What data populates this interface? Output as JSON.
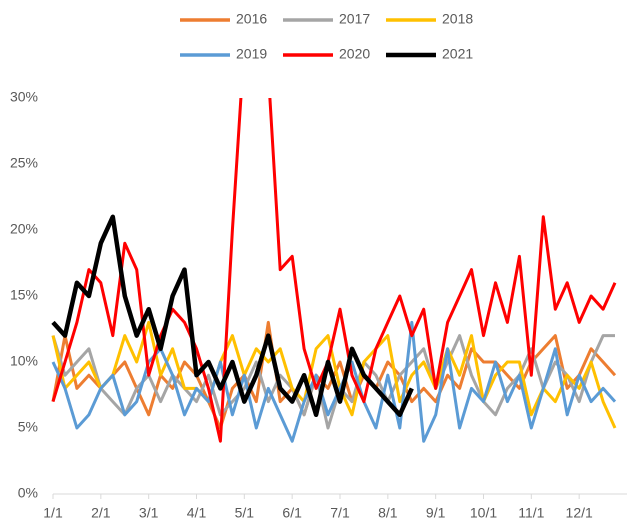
{
  "chart_data": {
    "type": "line",
    "categories": [
      "1/1",
      null,
      null,
      null,
      "2/1",
      null,
      null,
      null,
      "3/1",
      null,
      null,
      null,
      "4/1",
      null,
      null,
      null,
      "5/1",
      null,
      null,
      null,
      "6/1",
      null,
      null,
      null,
      "7/1",
      null,
      null,
      null,
      "8/1",
      null,
      null,
      null,
      "9/1",
      null,
      null,
      null,
      "10/1",
      null,
      null,
      null,
      "11/1",
      null,
      null,
      null,
      "12/1",
      null,
      null,
      null
    ],
    "series": [
      {
        "name": "2016",
        "color": "#ed7d31",
        "values": [
          7,
          12,
          8,
          9,
          8,
          9,
          10,
          8,
          6,
          9,
          8,
          10,
          9,
          7,
          5,
          8,
          9,
          7,
          13,
          7,
          8,
          6,
          9,
          8,
          10,
          7,
          9,
          8,
          10,
          9,
          7,
          8,
          7,
          9,
          8,
          11,
          10,
          10,
          9,
          8,
          10,
          11,
          12,
          8,
          9,
          11,
          10,
          9
        ]
      },
      {
        "name": "2017",
        "color": "#a5a5a5",
        "values": [
          12,
          9,
          10,
          11,
          8,
          7,
          6,
          8,
          9,
          7,
          9,
          8,
          7,
          9,
          6,
          7,
          8,
          10,
          7,
          9,
          8,
          6,
          9,
          5,
          8,
          7,
          10,
          9,
          7,
          9,
          10,
          11,
          8,
          10,
          12,
          9,
          7,
          6,
          8,
          9,
          11,
          8,
          10,
          9,
          7,
          10,
          12,
          12
        ]
      },
      {
        "name": "2018",
        "color": "#ffc000",
        "values": [
          12,
          8,
          9,
          10,
          8,
          9,
          12,
          10,
          13,
          9,
          11,
          8,
          8,
          7,
          10,
          12,
          9,
          11,
          10,
          11,
          8,
          7,
          11,
          12,
          8,
          6,
          10,
          11,
          12,
          7,
          9,
          10,
          8,
          11,
          9,
          12,
          7,
          9,
          10,
          10,
          6,
          8,
          7,
          9,
          8,
          10,
          7,
          5
        ]
      },
      {
        "name": "2019",
        "color": "#5b9bd5",
        "values": [
          10,
          8,
          5,
          6,
          8,
          9,
          6,
          7,
          10,
          11,
          9,
          6,
          8,
          7,
          10,
          6,
          9,
          5,
          8,
          6,
          4,
          7,
          9,
          6,
          8,
          10,
          7,
          5,
          9,
          5,
          13,
          4,
          6,
          11,
          5,
          8,
          7,
          10,
          7,
          9,
          5,
          8,
          11,
          6,
          9,
          7,
          8,
          7
        ]
      },
      {
        "name": "2020",
        "color": "#ff0000",
        "values": [
          7,
          10,
          13,
          17,
          16,
          12,
          19,
          17,
          9,
          12,
          14,
          13,
          11,
          8,
          4,
          20,
          34,
          40,
          32,
          17,
          18,
          11,
          8,
          10,
          14,
          9,
          7,
          11,
          13,
          15,
          12,
          14,
          8,
          13,
          15,
          17,
          12,
          16,
          13,
          18,
          9,
          21,
          14,
          16,
          13,
          15,
          14,
          16
        ]
      },
      {
        "name": "2021",
        "color": "#000000",
        "values": [
          13,
          12,
          16,
          15,
          19,
          21,
          15,
          12,
          14,
          11,
          15,
          17,
          9,
          10,
          8,
          10,
          7,
          9,
          12,
          8,
          7,
          9,
          6,
          10,
          7,
          11,
          9,
          8,
          7,
          6,
          8,
          null,
          null,
          null,
          null,
          null,
          null,
          null,
          null,
          null,
          null,
          null,
          null,
          null,
          null,
          null,
          null,
          null
        ]
      }
    ],
    "ylim": [
      0,
      30
    ],
    "yticks": [
      {
        "value": 0,
        "label": "0%"
      },
      {
        "value": 5,
        "label": "5%"
      },
      {
        "value": 10,
        "label": "10%"
      },
      {
        "value": 15,
        "label": "15%"
      },
      {
        "value": 20,
        "label": "20%"
      },
      {
        "value": 25,
        "label": "25%"
      },
      {
        "value": 30,
        "label": "30%"
      }
    ]
  }
}
